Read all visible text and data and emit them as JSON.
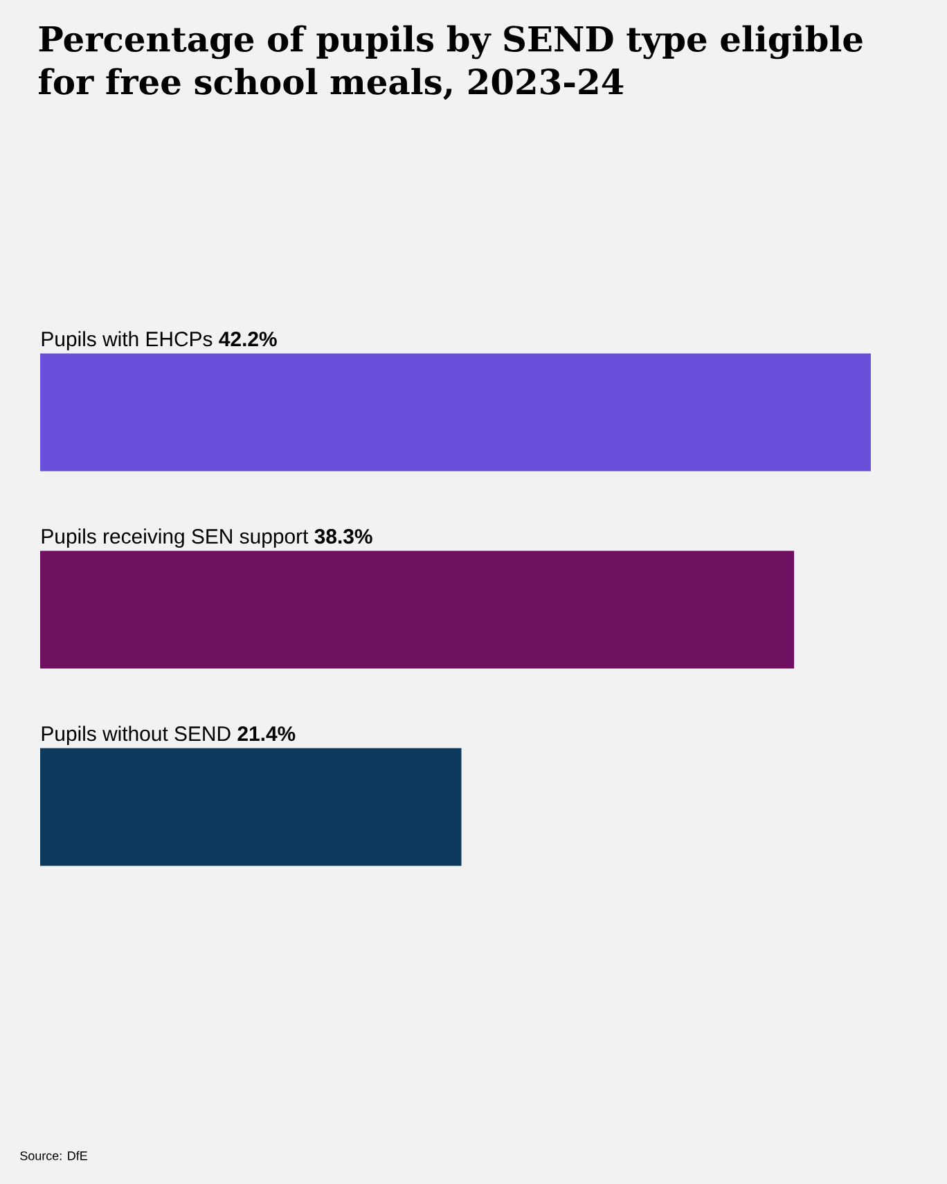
{
  "chart_data": {
    "type": "bar",
    "orientation": "horizontal",
    "title": "Percentage of pupils by SEND type eligible for free school meals, 2023-24",
    "categories": [
      "Pupils with EHCPs",
      "Pupils receiving SEN support",
      "Pupils without SEND"
    ],
    "values": [
      42.2,
      38.3,
      21.4
    ],
    "colors": [
      "#6a4fdb",
      "#701060",
      "#0d3a5c"
    ],
    "value_labels": [
      "42.2%",
      "38.3%",
      "21.4%"
    ],
    "annotations": [
      "Source: DfE"
    ]
  }
}
